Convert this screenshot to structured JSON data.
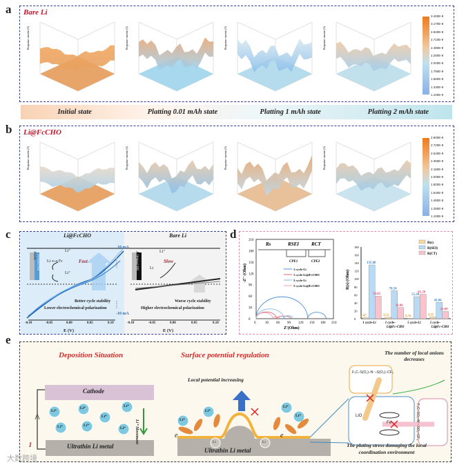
{
  "panel_a": {
    "label": "a",
    "title": "Bare Li",
    "colorbar": [
      "3.400E-9",
      "3.170E-9",
      "2.940E-9",
      "2.710E-9",
      "2.480E-9",
      "2.250E-9",
      "2.020E-9",
      "1.790E-9",
      "1.560E-9",
      "1.330E-9",
      "1.100E-9"
    ],
    "zlabel": "Response current (A)"
  },
  "stages": [
    "Initial state",
    "Platting 0.01 mAh state",
    "Platting 1 mAh state",
    "Platting 2 mAh state"
  ],
  "panel_b": {
    "label": "b",
    "title": "Li@FcCHO",
    "colorbar": [
      "2.900E-9",
      "2.720E-9",
      "2.540E-9",
      "2.360E-9",
      "2.180E-9",
      "2.000E-9",
      "1.820E-9",
      "1.640E-9",
      "1.460E-9",
      "1.280E-9",
      "1.100E-9"
    ]
  },
  "panel_c": {
    "label": "c",
    "left_title": "Li@FcCHO",
    "right_title": "Bare Li",
    "anode": "Anode",
    "fe_sei": "Fe-based SEI",
    "orig_sei": "Original SEI",
    "li_fc": "Li ⟷ Fc",
    "li_plus": "Li⁺",
    "li": "Li",
    "fast": "Fast",
    "slow": "Slow",
    "plus10": "10 mA",
    "minus10": "-10 mA",
    "left_note1": "Better cycle stability",
    "left_note2": "Lower electrochemical polarization",
    "right_note1": "Worse cycle stability",
    "right_note2": "Higher electrochemical polarization",
    "xticks": [
      "-0.10",
      "-0.05",
      "0.00",
      "0.05",
      "0.10"
    ],
    "xlabel": "E (V)"
  },
  "panel_d": {
    "label": "d",
    "circuit": {
      "rs": "Rs",
      "rsei": "RSEI",
      "rct": "RCT",
      "cpe1": "CPE1",
      "cpe2": "CPE2"
    }
  },
  "chart_data": [
    {
      "type": "line",
      "title": "Nyquist",
      "xlabel": "Z'(Ohm)",
      "ylabel": "-Z'' (Ohm)",
      "xlim": [
        0,
        210
      ],
      "ylim": [
        0,
        210
      ],
      "xticks": [
        "0",
        "30",
        "60",
        "90",
        "120",
        "150",
        "180",
        "210"
      ],
      "yticks": [
        "0",
        "30",
        "60",
        "90",
        "120",
        "150",
        "180",
        "210"
      ],
      "series": [
        {
          "name": "1 cycle-Li",
          "color": "#4a90d9",
          "arcs": [
            [
              0,
              140,
              58
            ],
            [
              140,
              190,
              17
            ]
          ]
        },
        {
          "name": "1 cycle-Li@FcCHO",
          "color": "#e0607a",
          "arcs": [
            [
              0,
              55,
              18
            ],
            [
              55,
              95,
              7
            ]
          ]
        },
        {
          "name": "5 cycle-Li",
          "color": "#7bb8ea",
          "arcs": [
            [
              0,
              75,
              26
            ],
            [
              75,
              100,
              8
            ]
          ]
        },
        {
          "name": "5 cycle-Li@FcCHO",
          "color": "#f0a0b0",
          "arcs": [
            [
              0,
              45,
              16
            ],
            [
              45,
              65,
              5
            ]
          ]
        }
      ]
    },
    {
      "type": "bar",
      "ylabel": "R(s) (Ohm)",
      "ylim": [
        0,
        180
      ],
      "yticks": [
        "0",
        "20",
        "40",
        "60",
        "80",
        "100",
        "120",
        "140",
        "160",
        "180"
      ],
      "categories": [
        "1 cycle-Li",
        "1 cycle-Li@Fc-CHO",
        "5 cycle-Li",
        "5 cycle-Li@Fc-CHO"
      ],
      "series": [
        {
          "name": "R(s)",
          "color": "#f7d9a0",
          "values": [
            2.45,
            3.52,
            0.76,
            4.35
          ],
          "labels": [
            "2.45",
            "3.52",
            "0.76",
            "4.35"
          ],
          "textcolor": "#e0a030"
        },
        {
          "name": "R(SEI)",
          "color": "#b9daf5",
          "values": [
            135.0,
            70.24,
            55.38,
            41.04
          ],
          "labels": [
            "135.00",
            "70.24",
            "55.38",
            "41.04"
          ],
          "textcolor": "#3a7fc8"
        },
        {
          "name": "R(CT)",
          "color": "#f8c3cc",
          "values": [
            56.82,
            28.09,
            61.28,
            18.09
          ],
          "labels": [
            "56.82",
            "28.09",
            "61.28",
            "18.09"
          ],
          "textcolor": "#e0506a"
        }
      ]
    }
  ],
  "panel_e": {
    "label": "e",
    "left_title": "Deposition Situation",
    "mid_title": "Surface potential regulation",
    "cathode": "Cathode",
    "li_metal": "Ultrathin Li metal",
    "li_ion": "Li⁺",
    "movement": "Li⁺ Movement",
    "current": "I",
    "local_pot": "Local potential increasing",
    "e": "e",
    "li": "Li",
    "anions": "The number of local anions decreases",
    "stress1": "The plating stress damaging the local",
    "stress2": "coordination environment",
    "lio": "LiO",
    "fe": "Fe",
    "tfsi_top": "F₃C–S(O₂)–N⁻–S(O₂)–CF₃",
    "tfsi_right": "F₃C–SO₂–N⁻–SO₂–CF₃"
  },
  "watermark": "大数跨境"
}
